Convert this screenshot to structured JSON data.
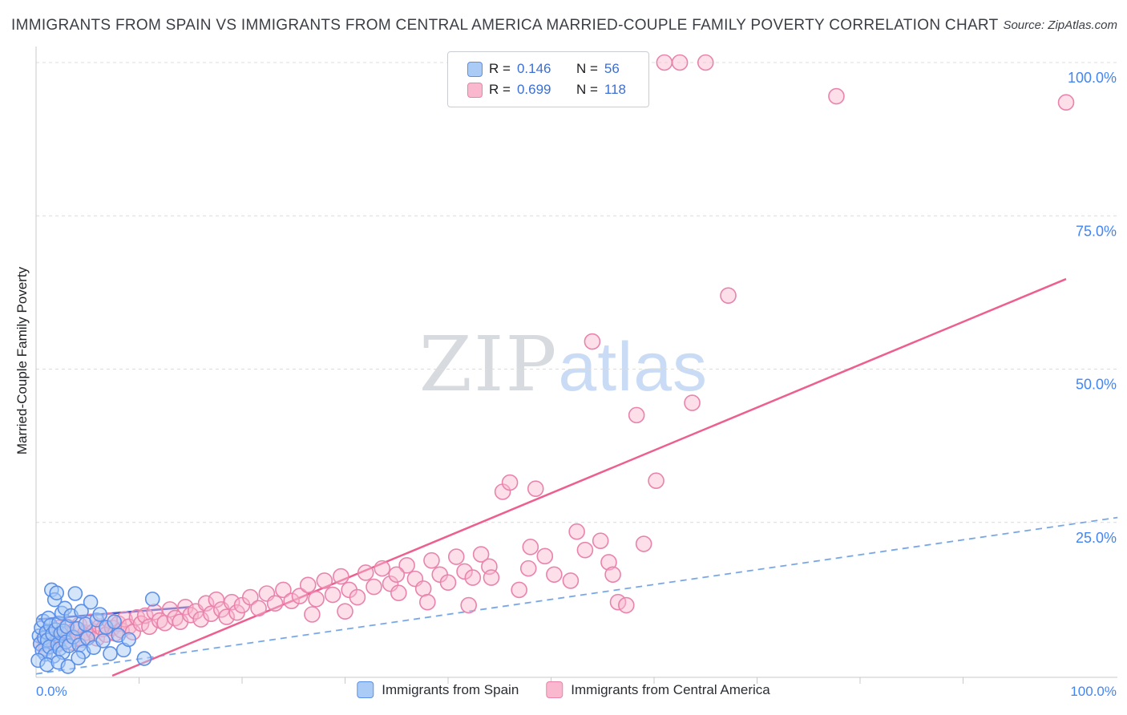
{
  "page": {
    "title": "IMMIGRANTS FROM SPAIN VS IMMIGRANTS FROM CENTRAL AMERICA MARRIED-COUPLE FAMILY POVERTY CORRELATION CHART",
    "source": "Source: ZipAtlas.com",
    "watermark": {
      "part1": "ZIP",
      "part2": "atlas"
    }
  },
  "legend_box": {
    "rows": [
      {
        "series": "spain",
        "r_label": "R =",
        "r_value": "0.146",
        "n_label": "N =",
        "n_value": "56"
      },
      {
        "series": "central_america",
        "r_label": "R =",
        "r_value": "0.699",
        "n_label": "N =",
        "n_value": "118"
      }
    ]
  },
  "bottom_legend": {
    "items": [
      {
        "label": "Immigrants from Spain"
      },
      {
        "label": "Immigrants from Central America"
      }
    ]
  },
  "axes": {
    "y_title": "Married-Couple Family Poverty",
    "x_min_label": "0.0%",
    "x_max_label": "100.0%",
    "y_tick_labels": [
      {
        "value": 100,
        "label": "100.0%"
      },
      {
        "value": 75,
        "label": "75.0%"
      },
      {
        "value": 50,
        "label": "50.0%"
      },
      {
        "value": 25,
        "label": "25.0%"
      }
    ]
  },
  "colors": {
    "axis_label": "#4285f4",
    "title_text": "#3b3f45",
    "grid": "#dcdcdc",
    "axis_line": "#c9c9c9",
    "spain_fill": "#a9cbf5",
    "spain_stroke": "#5b8fe8",
    "central_fill": "#f9b8ce",
    "central_stroke": "#e983ac",
    "spain_trend": "#4156c8",
    "spain_trend_dashed": "#76a7ec",
    "central_trend": "#ec5f8e",
    "watermark_zip": "#d7dade",
    "watermark_atlas": "#cadcf5"
  },
  "chart_data": {
    "type": "scatter",
    "title": "Immigrants from Spain vs Immigrants from Central America Married-Couple Family Poverty Correlation",
    "xlabel": "",
    "ylabel": "Married-Couple Family Poverty",
    "xlim": [
      0,
      105
    ],
    "ylim": [
      0,
      102.5
    ],
    "grid": "horizontal-dashed",
    "legend_position": "top-center",
    "series": [
      {
        "id": "spain",
        "name": "Immigrants from Spain",
        "R": 0.146,
        "N": 56,
        "fill": "#a9cbf5",
        "fill_opacity": 0.5,
        "stroke": "#5b8fe8",
        "marker_radius": 8.5,
        "points": [
          [
            0.3,
            6.5
          ],
          [
            0.4,
            5.2
          ],
          [
            0.5,
            7.8
          ],
          [
            0.6,
            4.1
          ],
          [
            0.7,
            8.9
          ],
          [
            0.8,
            6.2
          ],
          [
            0.9,
            3.5
          ],
          [
            1.0,
            7.1
          ],
          [
            1.1,
            5.8
          ],
          [
            1.2,
            9.4
          ],
          [
            1.3,
            4.7
          ],
          [
            1.4,
            8.2
          ],
          [
            1.5,
            14.0
          ],
          [
            1.6,
            6.8
          ],
          [
            1.7,
            3.2
          ],
          [
            1.8,
            12.4
          ],
          [
            1.9,
            7.5
          ],
          [
            2.0,
            13.5
          ],
          [
            2.1,
            5.1
          ],
          [
            2.2,
            8.6
          ],
          [
            2.3,
            4.4
          ],
          [
            2.4,
            6.9
          ],
          [
            2.5,
            10.2
          ],
          [
            2.6,
            3.8
          ],
          [
            2.7,
            7.3
          ],
          [
            2.8,
            11.0
          ],
          [
            2.9,
            5.5
          ],
          [
            3.0,
            8.0
          ],
          [
            3.2,
            4.9
          ],
          [
            3.4,
            9.8
          ],
          [
            3.6,
            6.3
          ],
          [
            3.8,
            13.4
          ],
          [
            4.0,
            7.7
          ],
          [
            4.2,
            5.0
          ],
          [
            4.4,
            10.5
          ],
          [
            4.6,
            3.9
          ],
          [
            4.8,
            8.4
          ],
          [
            5.0,
            6.1
          ],
          [
            5.3,
            12.0
          ],
          [
            5.6,
            4.6
          ],
          [
            5.9,
            9.1
          ],
          [
            6.2,
            10.0
          ],
          [
            6.5,
            5.7
          ],
          [
            6.8,
            7.9
          ],
          [
            7.2,
            3.6
          ],
          [
            7.6,
            8.8
          ],
          [
            8.0,
            6.6
          ],
          [
            8.5,
            4.2
          ],
          [
            9.0,
            5.9
          ],
          [
            10.5,
            2.8
          ],
          [
            11.3,
            12.5
          ],
          [
            0.2,
            2.5
          ],
          [
            1.05,
            1.8
          ],
          [
            2.15,
            2.2
          ],
          [
            3.1,
            1.5
          ],
          [
            4.1,
            2.9
          ]
        ]
      },
      {
        "id": "central-america",
        "name": "Immigrants from Central America",
        "R": 0.699,
        "N": 118,
        "fill": "#f9b8ce",
        "fill_opacity": 0.45,
        "stroke": "#e983ac",
        "marker_radius": 9.5,
        "points": [
          [
            0.5,
            5.2
          ],
          [
            0.8,
            6.0
          ],
          [
            1.0,
            4.5
          ],
          [
            1.2,
            7.2
          ],
          [
            1.5,
            5.8
          ],
          [
            1.8,
            6.5
          ],
          [
            2.0,
            5.0
          ],
          [
            2.2,
            7.8
          ],
          [
            2.5,
            6.2
          ],
          [
            2.8,
            5.5
          ],
          [
            3.0,
            8.0
          ],
          [
            3.2,
            6.8
          ],
          [
            3.5,
            5.4
          ],
          [
            3.8,
            7.5
          ],
          [
            4.0,
            6.0
          ],
          [
            4.2,
            8.3
          ],
          [
            4.5,
            5.9
          ],
          [
            4.8,
            7.0
          ],
          [
            5.0,
            6.4
          ],
          [
            5.3,
            8.8
          ],
          [
            5.6,
            7.2
          ],
          [
            5.9,
            6.1
          ],
          [
            6.2,
            8.0
          ],
          [
            6.5,
            7.6
          ],
          [
            6.8,
            6.7
          ],
          [
            7.1,
            9.0
          ],
          [
            7.4,
            7.8
          ],
          [
            7.7,
            6.9
          ],
          [
            8.0,
            8.5
          ],
          [
            8.3,
            7.4
          ],
          [
            8.6,
            9.2
          ],
          [
            9.0,
            8.0
          ],
          [
            9.4,
            7.1
          ],
          [
            9.8,
            9.5
          ],
          [
            10.2,
            8.5
          ],
          [
            10.6,
            9.8
          ],
          [
            11.0,
            8.0
          ],
          [
            11.5,
            10.4
          ],
          [
            12.0,
            9.0
          ],
          [
            12.5,
            8.6
          ],
          [
            13.0,
            10.8
          ],
          [
            13.5,
            9.4
          ],
          [
            14.0,
            8.8
          ],
          [
            14.5,
            11.2
          ],
          [
            15.0,
            9.9
          ],
          [
            15.5,
            10.5
          ],
          [
            16.0,
            9.2
          ],
          [
            16.5,
            11.8
          ],
          [
            17.0,
            10.1
          ],
          [
            17.5,
            12.4
          ],
          [
            18.0,
            10.8
          ],
          [
            18.5,
            9.6
          ],
          [
            19.0,
            12.0
          ],
          [
            19.5,
            10.3
          ],
          [
            20.0,
            11.5
          ],
          [
            20.8,
            12.8
          ],
          [
            21.6,
            11.0
          ],
          [
            22.4,
            13.4
          ],
          [
            23.2,
            11.8
          ],
          [
            24.0,
            14.0
          ],
          [
            24.8,
            12.2
          ],
          [
            25.6,
            13.0
          ],
          [
            26.4,
            14.8
          ],
          [
            27.2,
            12.5
          ],
          [
            28.0,
            15.5
          ],
          [
            28.8,
            13.2
          ],
          [
            29.6,
            16.2
          ],
          [
            30.4,
            14.0
          ],
          [
            31.2,
            12.8
          ],
          [
            32.0,
            16.8
          ],
          [
            32.8,
            14.5
          ],
          [
            33.6,
            17.5
          ],
          [
            34.4,
            15.0
          ],
          [
            35.2,
            13.5
          ],
          [
            36.0,
            18.0
          ],
          [
            36.8,
            15.8
          ],
          [
            37.6,
            14.2
          ],
          [
            38.4,
            18.8
          ],
          [
            39.2,
            16.5
          ],
          [
            40.0,
            15.2
          ],
          [
            40.8,
            19.4
          ],
          [
            41.6,
            17.0
          ],
          [
            42.4,
            16.0
          ],
          [
            43.2,
            19.8
          ],
          [
            44.0,
            17.8
          ],
          [
            44.2,
            16.0
          ],
          [
            45.3,
            30.0
          ],
          [
            46.0,
            31.5
          ],
          [
            46.9,
            14.0
          ],
          [
            47.8,
            17.5
          ],
          [
            48.5,
            30.5
          ],
          [
            49.4,
            19.5
          ],
          [
            50.3,
            16.5
          ],
          [
            51.9,
            15.5
          ],
          [
            52.5,
            23.5
          ],
          [
            53.3,
            20.5
          ],
          [
            54.0,
            54.5
          ],
          [
            54.8,
            22.0
          ],
          [
            55.6,
            18.5
          ],
          [
            56.5,
            12.0
          ],
          [
            57.3,
            11.5
          ],
          [
            58.3,
            42.5
          ],
          [
            59.0,
            21.5
          ],
          [
            60.2,
            31.8
          ],
          [
            61.0,
            100.0
          ],
          [
            62.5,
            100.0
          ],
          [
            63.7,
            44.5
          ],
          [
            65.0,
            100.0
          ],
          [
            67.2,
            62.0
          ],
          [
            77.7,
            94.5
          ],
          [
            100.0,
            93.5
          ],
          [
            56.0,
            16.5
          ],
          [
            48.0,
            21.0
          ],
          [
            42.0,
            11.5
          ],
          [
            38.0,
            12.0
          ],
          [
            35.0,
            16.5
          ],
          [
            30.0,
            10.5
          ],
          [
            26.8,
            10.0
          ]
        ]
      }
    ],
    "trend_lines": [
      {
        "name": "spain-projection",
        "x1": 0,
        "y1": 0.3,
        "x2": 105,
        "y2": 25.8,
        "style": "dashed",
        "color": "#76a7ec",
        "width": 1.8
      },
      {
        "name": "central-america-regression",
        "x1": 7.4,
        "y1": 0,
        "x2": 100,
        "y2": 64.7,
        "style": "solid",
        "color": "#ec5f8e",
        "width": 2.5
      },
      {
        "name": "spain-regression",
        "x1": 0.2,
        "y1": 9.2,
        "x2": 14.9,
        "y2": 11.2,
        "style": "solid",
        "color": "#4156c8",
        "width": 2.5
      }
    ]
  }
}
